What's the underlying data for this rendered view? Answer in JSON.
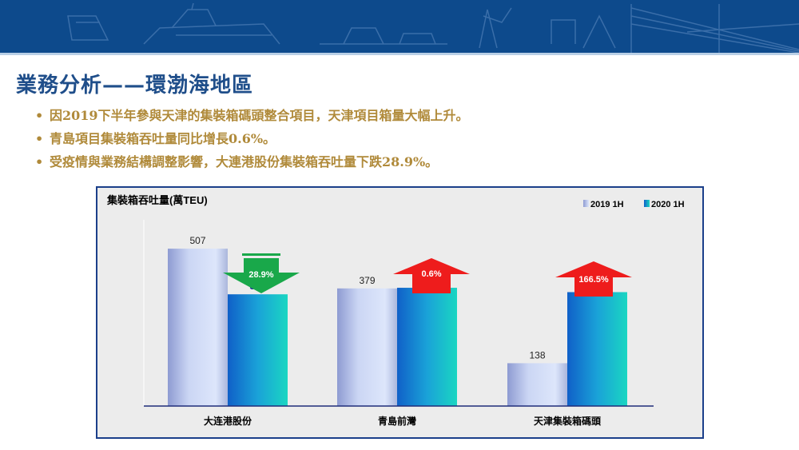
{
  "header": {
    "title": "業務分析——環渤海地區"
  },
  "bullets": [
    "因2019下半年參與天津的集裝箱碼頭整合項目，天津項目箱量大幅上升。",
    "青島項目集裝箱吞吐量同比增長0.6%。",
    "受疫情與業務結構調整影響，大連港股份集裝箱吞吐量下跌28.9%。"
  ],
  "colors": {
    "banner": "#0d4a8c",
    "title": "#1f4e8a",
    "bullet_text": "#b08a3a",
    "frame_border": "#1b3f8a",
    "chart_bg": "#ececec",
    "series_2019": "#c9d4f2",
    "series_2020": "#1aa0d0",
    "label_2020": "#1a2a9a",
    "arrow_down": "#19a84a",
    "arrow_up": "#ee1c1c"
  },
  "chart_data": {
    "type": "bar",
    "title": "集裝箱吞吐量(萬TEU)",
    "categories": [
      "大连港股份",
      "青島前灣",
      "天津集裝箱碼頭"
    ],
    "series": [
      {
        "name": "2019 1H",
        "values": [
          507,
          379,
          138
        ]
      },
      {
        "name": "2020 1H",
        "values": [
          360,
          381,
          367
        ]
      }
    ],
    "change_badges": [
      {
        "text": "28.9%",
        "direction": "down",
        "color": "#19a84a"
      },
      {
        "text": "0.6%",
        "direction": "up",
        "color": "#ee1c1c"
      },
      {
        "text": "166.5%",
        "direction": "up",
        "color": "#ee1c1c"
      }
    ],
    "legend_position": "top-right",
    "grid": false,
    "ylim": [
      0,
      600
    ],
    "data_labels": true
  }
}
